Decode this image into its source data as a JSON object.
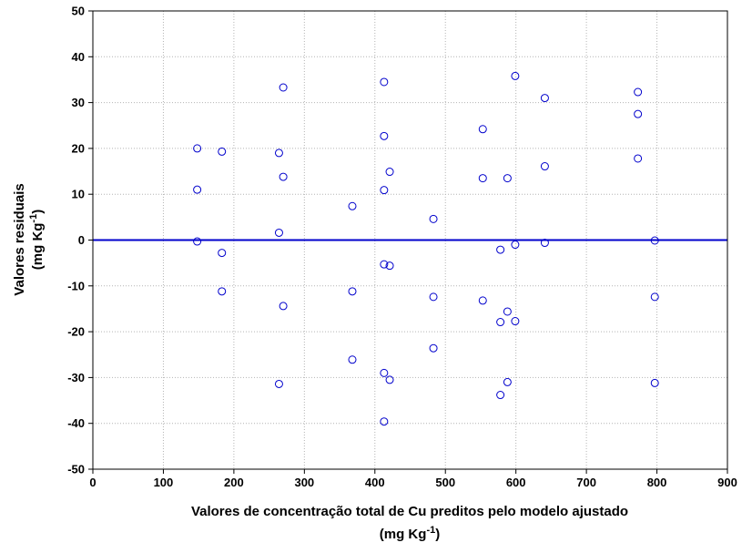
{
  "chart_data": {
    "type": "scatter",
    "title": "",
    "xlabel_line1": "Valores de concentração total de Cu preditos pelo modelo ajustado",
    "xlabel_line2": "(mg Kg",
    "xlabel_sup": "-1",
    "xlabel_close": ")",
    "ylabel_line1": "Valores residuais",
    "ylabel_line2": "(mg Kg",
    "ylabel_sup": "-1",
    "ylabel_close": ")",
    "xlim": [
      0,
      900
    ],
    "ylim": [
      -50,
      50
    ],
    "x_ticks": [
      0,
      100,
      200,
      300,
      400,
      500,
      600,
      700,
      800,
      900
    ],
    "y_ticks": [
      -50,
      -40,
      -30,
      -20,
      -10,
      0,
      10,
      20,
      30,
      40,
      50
    ],
    "grid": true,
    "reference_line": {
      "y": 0,
      "color": "#0000cc"
    },
    "marker": {
      "shape": "open-circle",
      "color": "#0000cc"
    },
    "points": [
      {
        "x": 148,
        "y": 20.0
      },
      {
        "x": 148,
        "y": 11.0
      },
      {
        "x": 148,
        "y": -0.3
      },
      {
        "x": 183,
        "y": 19.3
      },
      {
        "x": 183,
        "y": -2.8
      },
      {
        "x": 183,
        "y": -11.2
      },
      {
        "x": 264,
        "y": 19.0
      },
      {
        "x": 264,
        "y": 1.6
      },
      {
        "x": 264,
        "y": -31.4
      },
      {
        "x": 270,
        "y": 33.3
      },
      {
        "x": 270,
        "y": 13.8
      },
      {
        "x": 270,
        "y": -14.4
      },
      {
        "x": 368,
        "y": 7.4
      },
      {
        "x": 368,
        "y": -11.2
      },
      {
        "x": 368,
        "y": -26.1
      },
      {
        "x": 413,
        "y": 34.5
      },
      {
        "x": 413,
        "y": 22.7
      },
      {
        "x": 413,
        "y": 10.9
      },
      {
        "x": 413,
        "y": -5.3
      },
      {
        "x": 413,
        "y": -29.0
      },
      {
        "x": 413,
        "y": -39.6
      },
      {
        "x": 421,
        "y": 14.9
      },
      {
        "x": 421,
        "y": -5.6
      },
      {
        "x": 421,
        "y": -30.5
      },
      {
        "x": 483,
        "y": 4.6
      },
      {
        "x": 483,
        "y": -12.4
      },
      {
        "x": 483,
        "y": -23.6
      },
      {
        "x": 553,
        "y": 24.2
      },
      {
        "x": 553,
        "y": 13.5
      },
      {
        "x": 553,
        "y": -13.2
      },
      {
        "x": 578,
        "y": -2.1
      },
      {
        "x": 578,
        "y": -17.9
      },
      {
        "x": 578,
        "y": -33.8
      },
      {
        "x": 588,
        "y": 13.5
      },
      {
        "x": 588,
        "y": -15.6
      },
      {
        "x": 588,
        "y": -31.0
      },
      {
        "x": 599,
        "y": 35.8
      },
      {
        "x": 599,
        "y": -1.0
      },
      {
        "x": 599,
        "y": -17.7
      },
      {
        "x": 641,
        "y": 31.0
      },
      {
        "x": 641,
        "y": 16.1
      },
      {
        "x": 641,
        "y": -0.6
      },
      {
        "x": 773,
        "y": 32.3
      },
      {
        "x": 773,
        "y": 27.5
      },
      {
        "x": 773,
        "y": 17.8
      },
      {
        "x": 797,
        "y": -0.1
      },
      {
        "x": 797,
        "y": -12.4
      },
      {
        "x": 797,
        "y": -31.2
      }
    ]
  }
}
